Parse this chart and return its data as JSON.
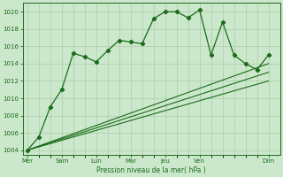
{
  "bg_color": "#cce8cc",
  "grid_color": "#aaccaa",
  "line_color": "#1a6b1a",
  "xlabel": "Pression niveau de la mer( hPa )",
  "ylim": [
    1003.5,
    1021.0
  ],
  "yticks": [
    1004,
    1006,
    1008,
    1010,
    1012,
    1014,
    1016,
    1018,
    1020
  ],
  "xtick_labels": [
    "Mer",
    "Sam",
    "Lun",
    "Mar",
    "Jeu",
    "Ven",
    "Dim"
  ],
  "xtick_positions": [
    0,
    1.5,
    3,
    4.5,
    6,
    7.5,
    10.5
  ],
  "all_xtick_positions": [
    0,
    0.5,
    1,
    1.5,
    2,
    2.5,
    3,
    3.5,
    4,
    4.5,
    5,
    5.5,
    6,
    6.5,
    7,
    7.5,
    8,
    8.5,
    9,
    9.5,
    10,
    10.5
  ],
  "series1_x": [
    0,
    0.5,
    1,
    1.5,
    2,
    2.5,
    3,
    3.5,
    4,
    4.5,
    5,
    5.5,
    6,
    6.5,
    7,
    7.5,
    8,
    8.5,
    9,
    9.5,
    10,
    10.5
  ],
  "series1_y": [
    1004.0,
    1005.5,
    1009.0,
    1011.0,
    1015.2,
    1014.8,
    1014.2,
    1015.5,
    1016.7,
    1016.5,
    1016.3,
    1019.2,
    1020.0,
    1020.0,
    1019.3,
    1020.2,
    1015.0,
    1018.8,
    1015.0,
    1014.0,
    1013.3,
    1015.0
  ],
  "series2_x": [
    0,
    10.5
  ],
  "series2_y": [
    1004.0,
    1014.0
  ],
  "series3_x": [
    0,
    10.5
  ],
  "series3_y": [
    1004.0,
    1013.0
  ],
  "series4_x": [
    0,
    10.5
  ],
  "series4_y": [
    1004.0,
    1012.0
  ]
}
